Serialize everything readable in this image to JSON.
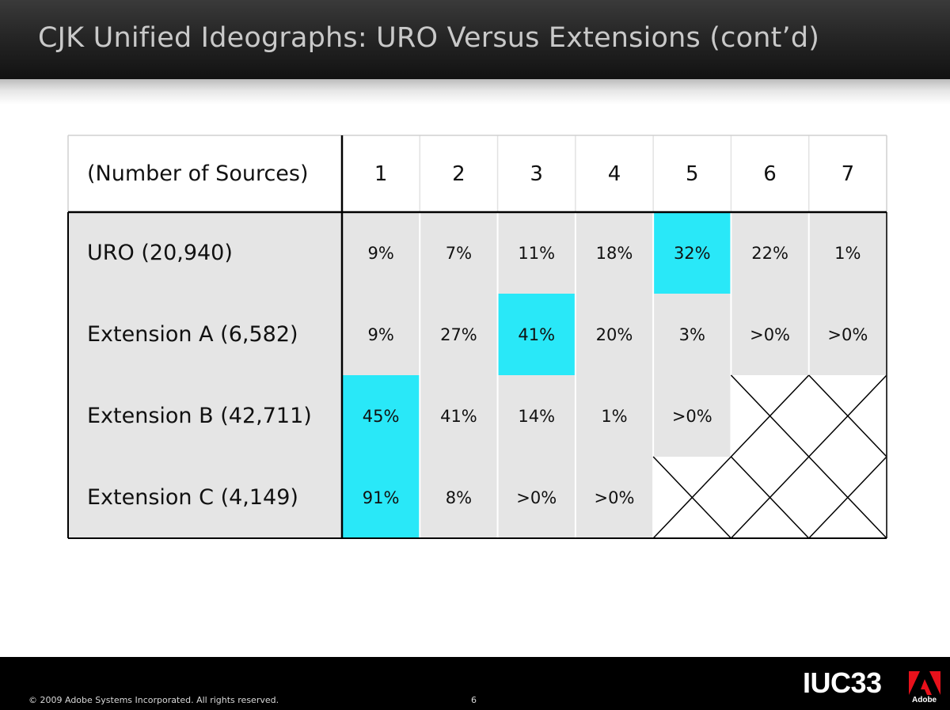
{
  "slide": {
    "title": "CJK Unified Ideographs: URO Versus Extensions (cont’d)"
  },
  "table": {
    "corner_label": "(Number of Sources)",
    "columns": [
      "1",
      "2",
      "3",
      "4",
      "5",
      "6",
      "7"
    ],
    "rows": [
      {
        "label": "URO (20,940)",
        "cells": [
          "9%",
          "7%",
          "11%",
          "18%",
          "32%",
          "22%",
          "1%"
        ],
        "highlight_index": 4,
        "not_applicable": []
      },
      {
        "label": "Extension A (6,582)",
        "cells": [
          "9%",
          "27%",
          "41%",
          "20%",
          "3%",
          ">0%",
          ">0%"
        ],
        "highlight_index": 2,
        "not_applicable": []
      },
      {
        "label": "Extension B (42,711)",
        "cells": [
          "45%",
          "41%",
          "14%",
          "1%",
          ">0%",
          "",
          ""
        ],
        "highlight_index": 0,
        "not_applicable": [
          5,
          6
        ]
      },
      {
        "label": "Extension C (4,149)",
        "cells": [
          "91%",
          "8%",
          ">0%",
          ">0%",
          "",
          "",
          ""
        ],
        "highlight_index": 0,
        "not_applicable": [
          4,
          5,
          6
        ]
      }
    ],
    "colors": {
      "highlight": "#29e8f8",
      "cell_background": "#e5e5e5",
      "not_applicable_background": "#ffffff"
    }
  },
  "footer": {
    "copyright": "© 2009 Adobe Systems Incorporated.  All rights reserved.",
    "page_number": "6",
    "conference": "IUC33",
    "brand_word": "Adobe",
    "brand_logo_icon": "adobe-logo-icon"
  }
}
